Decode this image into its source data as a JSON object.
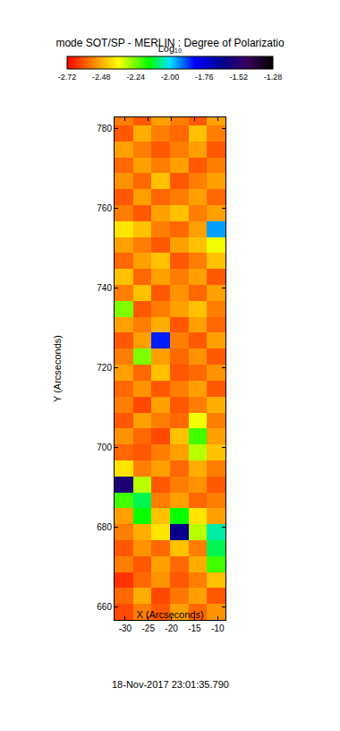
{
  "chart_data": {
    "type": "heatmap",
    "title": "mode SOT/SP - MERLIN : Degree of Polarizatio",
    "x_label": "X (Arcseconds)",
    "y_label": "Y (Arcseconds)",
    "annotation": "18-Nov-2017 23:01:35.790",
    "xlim": [
      -32.3,
      -8.3
    ],
    "ylim": [
      656.8,
      782.8
    ],
    "xticks": [
      -30,
      -25,
      -20,
      -15,
      -10
    ],
    "yticks": [
      660,
      680,
      700,
      720,
      740,
      760,
      780
    ],
    "x": [
      -30.3,
      -26.3,
      -22.3,
      -18.3,
      -14.3,
      -10.3
    ],
    "y": [
      658.8,
      662.8,
      666.8,
      670.8,
      674.8,
      678.8,
      682.8,
      686.8,
      690.8,
      694.8,
      698.8,
      702.8,
      706.8,
      710.8,
      714.8,
      718.8,
      722.8,
      726.8,
      730.8,
      734.8,
      738.8,
      742.8,
      746.8,
      750.8,
      754.8,
      758.8,
      762.8,
      766.8,
      770.8,
      774.8,
      778.8,
      782.8
    ],
    "z": [
      [
        -2.62,
        -2.55,
        -2.6,
        -2.5,
        -2.58,
        -2.52
      ],
      [
        -2.58,
        -2.48,
        -2.62,
        -2.56,
        -2.5,
        -2.6
      ],
      [
        -2.65,
        -2.58,
        -2.52,
        -2.6,
        -2.55,
        -2.45
      ],
      [
        -2.55,
        -2.6,
        -2.5,
        -2.58,
        -2.48,
        -2.2
      ],
      [
        -2.6,
        -2.52,
        -2.58,
        -2.45,
        -2.55,
        -2.1
      ],
      [
        -2.55,
        -2.48,
        -2.4,
        -1.62,
        -2.3,
        -2.05
      ],
      [
        -2.5,
        -2.15,
        -2.45,
        -2.15,
        -2.4,
        -2.5
      ],
      [
        -2.2,
        -2.1,
        -2.55,
        -2.5,
        -2.58,
        -2.55
      ],
      [
        -1.55,
        -2.3,
        -2.6,
        -2.55,
        -2.52,
        -2.6
      ],
      [
        -2.4,
        -2.55,
        -2.5,
        -2.58,
        -2.48,
        -2.55
      ],
      [
        -2.58,
        -2.6,
        -2.55,
        -2.5,
        -2.3,
        -2.45
      ],
      [
        -2.52,
        -2.58,
        -2.62,
        -2.45,
        -2.2,
        -2.5
      ],
      [
        -2.6,
        -2.5,
        -2.55,
        -2.58,
        -2.35,
        -2.55
      ],
      [
        -2.55,
        -2.62,
        -2.5,
        -2.6,
        -2.55,
        -2.48
      ],
      [
        -2.58,
        -2.52,
        -2.6,
        -2.55,
        -2.5,
        -2.6
      ],
      [
        -2.5,
        -2.58,
        -2.45,
        -2.6,
        -2.58,
        -2.52
      ],
      [
        -2.55,
        -2.25,
        -2.5,
        -2.58,
        -2.52,
        -2.6
      ],
      [
        -2.6,
        -2.5,
        -1.85,
        -2.55,
        -2.6,
        -2.5
      ],
      [
        -2.5,
        -2.55,
        -2.48,
        -2.6,
        -2.5,
        -2.58
      ],
      [
        -2.25,
        -2.6,
        -2.55,
        -2.5,
        -2.45,
        -2.55
      ],
      [
        -2.55,
        -2.45,
        -2.6,
        -2.52,
        -2.58,
        -2.5
      ],
      [
        -2.45,
        -2.58,
        -2.5,
        -2.55,
        -2.5,
        -2.6
      ],
      [
        -2.58,
        -2.5,
        -2.45,
        -2.6,
        -2.55,
        -2.45
      ],
      [
        -2.5,
        -2.55,
        -2.6,
        -2.5,
        -2.45,
        -2.35
      ],
      [
        -2.4,
        -2.45,
        -2.55,
        -2.58,
        -2.5,
        -1.95
      ],
      [
        -2.55,
        -2.6,
        -2.5,
        -2.45,
        -2.55,
        -2.5
      ],
      [
        -2.6,
        -2.5,
        -2.58,
        -2.55,
        -2.5,
        -2.58
      ],
      [
        -2.52,
        -2.58,
        -2.45,
        -2.6,
        -2.55,
        -2.5
      ],
      [
        -2.58,
        -2.5,
        -2.55,
        -2.5,
        -2.6,
        -2.55
      ],
      [
        -2.5,
        -2.55,
        -2.6,
        -2.55,
        -2.5,
        -2.6
      ],
      [
        -2.6,
        -2.48,
        -2.55,
        -2.58,
        -2.45,
        -2.55
      ],
      [
        -2.55,
        -2.6,
        -2.5,
        -2.55,
        -2.6,
        -2.5
      ]
    ],
    "colorbar": {
      "title": "Log₁₀",
      "range": [
        -2.72,
        -1.28
      ],
      "ticks": [
        {
          "value": -2.72,
          "label": "-2.72"
        },
        {
          "value": -2.48,
          "label": "-2.48"
        },
        {
          "value": -2.24,
          "label": "-2.24"
        },
        {
          "value": -2.0,
          "label": "-2.00"
        },
        {
          "value": -1.76,
          "label": "-1.76"
        },
        {
          "value": -1.52,
          "label": "-1.52"
        },
        {
          "value": -1.28,
          "label": "-1.28"
        }
      ]
    },
    "grid": false
  }
}
